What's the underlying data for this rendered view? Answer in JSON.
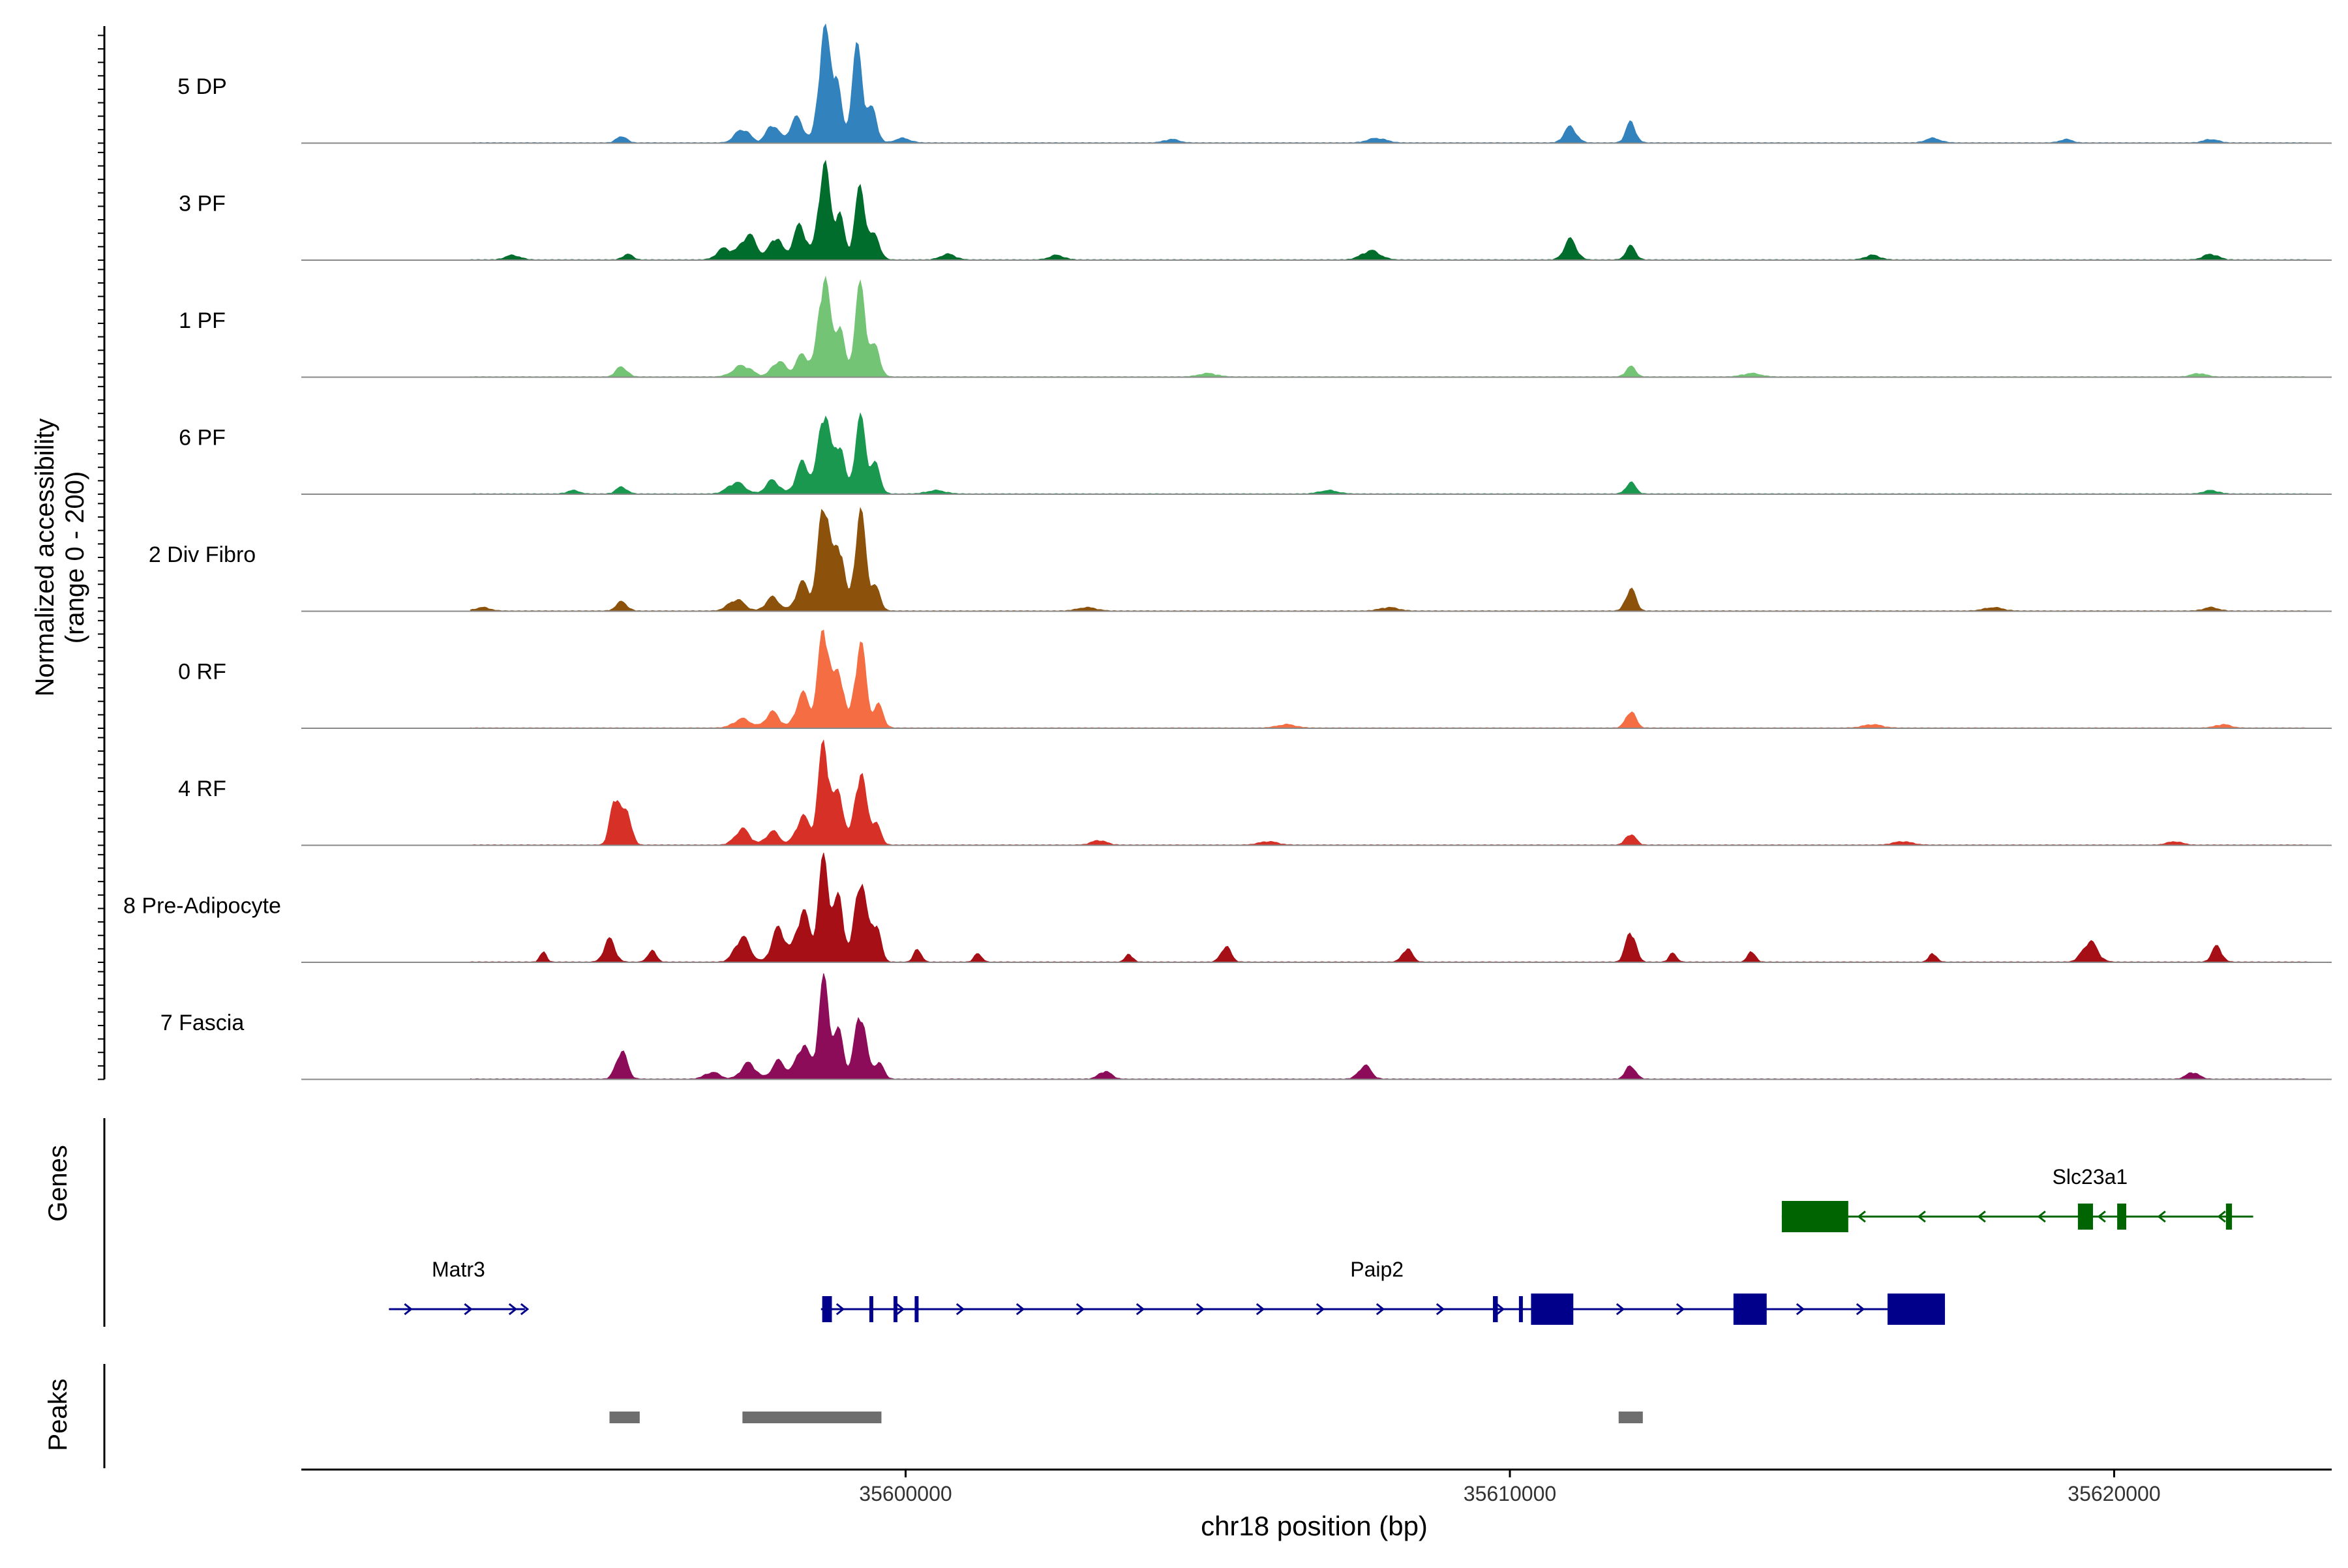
{
  "chart_data": {
    "type": "area",
    "title": "",
    "chromosome": "chr18",
    "xlabel": "chr18 position (bp)",
    "ylabel": "Normalized accessibility",
    "ylabel_range": "(range 0 - 200)",
    "ylim": [
      0,
      200
    ],
    "xlim": [
      35590000,
      35623600
    ],
    "x_ticks": [
      35600000,
      35610000,
      35620000
    ],
    "x_tick_labels": [
      "35600000",
      "35610000",
      "35620000"
    ],
    "track_labels": {
      "genes": "Genes",
      "peaks": "Peaks"
    },
    "series": [
      {
        "name": "5 DP",
        "color": "#3182bd",
        "peaks": [
          {
            "pos": 35591500,
            "h": 3,
            "w": 60
          },
          {
            "pos": 35595300,
            "h": 6,
            "w": 80
          },
          {
            "pos": 35597300,
            "h": 12,
            "w": 120
          },
          {
            "pos": 35597800,
            "h": 16,
            "w": 100
          },
          {
            "pos": 35598200,
            "h": 22,
            "w": 110
          },
          {
            "pos": 35598650,
            "h": 95,
            "w": 90
          },
          {
            "pos": 35598850,
            "h": 55,
            "w": 80
          },
          {
            "pos": 35599200,
            "h": 82,
            "w": 90
          },
          {
            "pos": 35599450,
            "h": 28,
            "w": 80
          },
          {
            "pos": 35599950,
            "h": 4,
            "w": 120
          },
          {
            "pos": 35604400,
            "h": 3,
            "w": 120
          },
          {
            "pos": 35607800,
            "h": 4,
            "w": 150
          },
          {
            "pos": 35611000,
            "h": 14,
            "w": 100
          },
          {
            "pos": 35612000,
            "h": 18,
            "w": 80
          },
          {
            "pos": 35617000,
            "h": 4,
            "w": 120
          },
          {
            "pos": 35619200,
            "h": 3,
            "w": 100
          },
          {
            "pos": 35621600,
            "h": 3,
            "w": 120
          }
        ]
      },
      {
        "name": "3 PF",
        "color": "#006d2c",
        "peaks": [
          {
            "pos": 35593500,
            "h": 4,
            "w": 120
          },
          {
            "pos": 35595400,
            "h": 5,
            "w": 80
          },
          {
            "pos": 35597000,
            "h": 10,
            "w": 120
          },
          {
            "pos": 35597400,
            "h": 22,
            "w": 130
          },
          {
            "pos": 35597850,
            "h": 20,
            "w": 100
          },
          {
            "pos": 35598250,
            "h": 30,
            "w": 110
          },
          {
            "pos": 35598650,
            "h": 85,
            "w": 90
          },
          {
            "pos": 35598900,
            "h": 40,
            "w": 80
          },
          {
            "pos": 35599250,
            "h": 62,
            "w": 90
          },
          {
            "pos": 35599500,
            "h": 20,
            "w": 80
          },
          {
            "pos": 35600700,
            "h": 5,
            "w": 120
          },
          {
            "pos": 35602500,
            "h": 4,
            "w": 120
          },
          {
            "pos": 35607700,
            "h": 8,
            "w": 150
          },
          {
            "pos": 35611000,
            "h": 18,
            "w": 100
          },
          {
            "pos": 35612000,
            "h": 12,
            "w": 80
          },
          {
            "pos": 35616000,
            "h": 4,
            "w": 120
          },
          {
            "pos": 35621600,
            "h": 5,
            "w": 120
          }
        ]
      },
      {
        "name": "1 PF",
        "color": "#74c476",
        "peaks": [
          {
            "pos": 35595300,
            "h": 9,
            "w": 90
          },
          {
            "pos": 35597300,
            "h": 10,
            "w": 150
          },
          {
            "pos": 35597900,
            "h": 14,
            "w": 110
          },
          {
            "pos": 35598300,
            "h": 20,
            "w": 110
          },
          {
            "pos": 35598650,
            "h": 90,
            "w": 90
          },
          {
            "pos": 35598900,
            "h": 45,
            "w": 80
          },
          {
            "pos": 35599250,
            "h": 78,
            "w": 90
          },
          {
            "pos": 35599500,
            "h": 25,
            "w": 80
          },
          {
            "pos": 35612000,
            "h": 9,
            "w": 80
          },
          {
            "pos": 35605000,
            "h": 3,
            "w": 150
          },
          {
            "pos": 35614000,
            "h": 3,
            "w": 150
          },
          {
            "pos": 35621400,
            "h": 3,
            "w": 120
          }
        ]
      },
      {
        "name": "6 PF",
        "color": "#1a9850",
        "peaks": [
          {
            "pos": 35594500,
            "h": 3,
            "w": 100
          },
          {
            "pos": 35595300,
            "h": 6,
            "w": 90
          },
          {
            "pos": 35597200,
            "h": 10,
            "w": 140
          },
          {
            "pos": 35597800,
            "h": 12,
            "w": 110
          },
          {
            "pos": 35598300,
            "h": 28,
            "w": 110
          },
          {
            "pos": 35598650,
            "h": 75,
            "w": 90
          },
          {
            "pos": 35598900,
            "h": 45,
            "w": 80
          },
          {
            "pos": 35599250,
            "h": 65,
            "w": 90
          },
          {
            "pos": 35599500,
            "h": 25,
            "w": 80
          },
          {
            "pos": 35600500,
            "h": 3,
            "w": 150
          },
          {
            "pos": 35612000,
            "h": 10,
            "w": 80
          },
          {
            "pos": 35607000,
            "h": 3,
            "w": 150
          },
          {
            "pos": 35621600,
            "h": 3,
            "w": 120
          }
        ]
      },
      {
        "name": "2 Div Fibro",
        "color": "#8c510a",
        "peaks": [
          {
            "pos": 35593000,
            "h": 3,
            "w": 120
          },
          {
            "pos": 35595300,
            "h": 8,
            "w": 90
          },
          {
            "pos": 35597200,
            "h": 10,
            "w": 130
          },
          {
            "pos": 35597800,
            "h": 12,
            "w": 110
          },
          {
            "pos": 35598300,
            "h": 25,
            "w": 110
          },
          {
            "pos": 35598650,
            "h": 100,
            "w": 90
          },
          {
            "pos": 35598900,
            "h": 60,
            "w": 80
          },
          {
            "pos": 35599250,
            "h": 85,
            "w": 90
          },
          {
            "pos": 35599500,
            "h": 20,
            "w": 80
          },
          {
            "pos": 35603000,
            "h": 3,
            "w": 150
          },
          {
            "pos": 35608000,
            "h": 3,
            "w": 150
          },
          {
            "pos": 35612000,
            "h": 20,
            "w": 80
          },
          {
            "pos": 35618000,
            "h": 3,
            "w": 150
          },
          {
            "pos": 35621600,
            "h": 3,
            "w": 120
          }
        ]
      },
      {
        "name": "0 RF",
        "color": "#f46d43",
        "peaks": [
          {
            "pos": 35597300,
            "h": 8,
            "w": 140
          },
          {
            "pos": 35597800,
            "h": 14,
            "w": 110
          },
          {
            "pos": 35598300,
            "h": 30,
            "w": 110
          },
          {
            "pos": 35598650,
            "h": 90,
            "w": 90
          },
          {
            "pos": 35598900,
            "h": 50,
            "w": 80
          },
          {
            "pos": 35599250,
            "h": 75,
            "w": 90
          },
          {
            "pos": 35599550,
            "h": 20,
            "w": 80
          },
          {
            "pos": 35612000,
            "h": 15,
            "w": 80
          },
          {
            "pos": 35606300,
            "h": 3,
            "w": 150
          },
          {
            "pos": 35616000,
            "h": 3,
            "w": 150
          },
          {
            "pos": 35621800,
            "h": 3,
            "w": 120
          }
        ]
      },
      {
        "name": "4 RF",
        "color": "#d73027",
        "peaks": [
          {
            "pos": 35595200,
            "h": 45,
            "w": 80
          },
          {
            "pos": 35595400,
            "h": 28,
            "w": 70
          },
          {
            "pos": 35597300,
            "h": 14,
            "w": 120
          },
          {
            "pos": 35597800,
            "h": 12,
            "w": 110
          },
          {
            "pos": 35598300,
            "h": 25,
            "w": 110
          },
          {
            "pos": 35598650,
            "h": 90,
            "w": 90
          },
          {
            "pos": 35598900,
            "h": 45,
            "w": 80
          },
          {
            "pos": 35599250,
            "h": 65,
            "w": 90
          },
          {
            "pos": 35599500,
            "h": 20,
            "w": 80
          },
          {
            "pos": 35603200,
            "h": 4,
            "w": 120
          },
          {
            "pos": 35606000,
            "h": 3,
            "w": 150
          },
          {
            "pos": 35612000,
            "h": 10,
            "w": 80
          },
          {
            "pos": 35616500,
            "h": 3,
            "w": 150
          },
          {
            "pos": 35621000,
            "h": 3,
            "w": 120
          }
        ]
      },
      {
        "name": "8 Pre-Adipocyte",
        "color": "#a50f15",
        "peaks": [
          {
            "pos": 35592400,
            "h": 8,
            "w": 50
          },
          {
            "pos": 35594000,
            "h": 10,
            "w": 50
          },
          {
            "pos": 35595100,
            "h": 20,
            "w": 90
          },
          {
            "pos": 35595800,
            "h": 10,
            "w": 70
          },
          {
            "pos": 35597300,
            "h": 22,
            "w": 120
          },
          {
            "pos": 35597900,
            "h": 30,
            "w": 110
          },
          {
            "pos": 35598300,
            "h": 45,
            "w": 110
          },
          {
            "pos": 35598650,
            "h": 90,
            "w": 90
          },
          {
            "pos": 35598900,
            "h": 55,
            "w": 80
          },
          {
            "pos": 35599250,
            "h": 75,
            "w": 90
          },
          {
            "pos": 35599500,
            "h": 35,
            "w": 80
          },
          {
            "pos": 35600200,
            "h": 12,
            "w": 60
          },
          {
            "pos": 35601200,
            "h": 8,
            "w": 60
          },
          {
            "pos": 35603700,
            "h": 7,
            "w": 60
          },
          {
            "pos": 35605300,
            "h": 14,
            "w": 80
          },
          {
            "pos": 35608300,
            "h": 12,
            "w": 80
          },
          {
            "pos": 35612000,
            "h": 28,
            "w": 80
          },
          {
            "pos": 35612700,
            "h": 8,
            "w": 60
          },
          {
            "pos": 35614000,
            "h": 10,
            "w": 60
          },
          {
            "pos": 35617000,
            "h": 8,
            "w": 60
          },
          {
            "pos": 35619600,
            "h": 18,
            "w": 120
          },
          {
            "pos": 35621700,
            "h": 14,
            "w": 80
          }
        ]
      },
      {
        "name": "7 Fascia",
        "color": "#8c0c5a",
        "peaks": [
          {
            "pos": 35592400,
            "h": 4,
            "w": 80
          },
          {
            "pos": 35595300,
            "h": 25,
            "w": 90
          },
          {
            "pos": 35596800,
            "h": 6,
            "w": 120
          },
          {
            "pos": 35597400,
            "h": 14,
            "w": 120
          },
          {
            "pos": 35597900,
            "h": 16,
            "w": 110
          },
          {
            "pos": 35598300,
            "h": 30,
            "w": 110
          },
          {
            "pos": 35598650,
            "h": 85,
            "w": 90
          },
          {
            "pos": 35598900,
            "h": 40,
            "w": 80
          },
          {
            "pos": 35599250,
            "h": 60,
            "w": 90
          },
          {
            "pos": 35599550,
            "h": 15,
            "w": 80
          },
          {
            "pos": 35603300,
            "h": 7,
            "w": 100
          },
          {
            "pos": 35607600,
            "h": 12,
            "w": 100
          },
          {
            "pos": 35612000,
            "h": 12,
            "w": 80
          },
          {
            "pos": 35621300,
            "h": 6,
            "w": 100
          }
        ]
      }
    ],
    "genes": [
      {
        "name": "Matr3",
        "strand": "+",
        "color": "#00008b",
        "start": 35591450,
        "end": 35593700,
        "exons": []
      },
      {
        "name": "Paip2",
        "strand": "+",
        "color": "#00008b",
        "start": 35598600,
        "end": 35617200,
        "exons": [
          [
            35598620,
            35598780
          ],
          [
            35599400,
            35599460
          ],
          [
            35599800,
            35599860
          ],
          [
            35600150,
            35600210
          ],
          [
            35609720,
            35609800
          ],
          [
            35610150,
            35610210
          ],
          [
            35610350,
            35611050
          ],
          [
            35613700,
            35614250
          ],
          [
            35616250,
            35617200
          ]
        ]
      },
      {
        "name": "Slc23a1",
        "strand": "-",
        "color": "#006400",
        "start": 35614500,
        "end": 35622300,
        "exons": [
          [
            35614500,
            35615600
          ],
          [
            35619400,
            35619650
          ],
          [
            35620050,
            35620200
          ],
          [
            35621850,
            35621950
          ]
        ]
      }
    ],
    "peak_regions": [
      [
        35595100,
        35595600
      ],
      [
        35597300,
        35599600
      ],
      [
        35611800,
        35612200
      ]
    ]
  }
}
